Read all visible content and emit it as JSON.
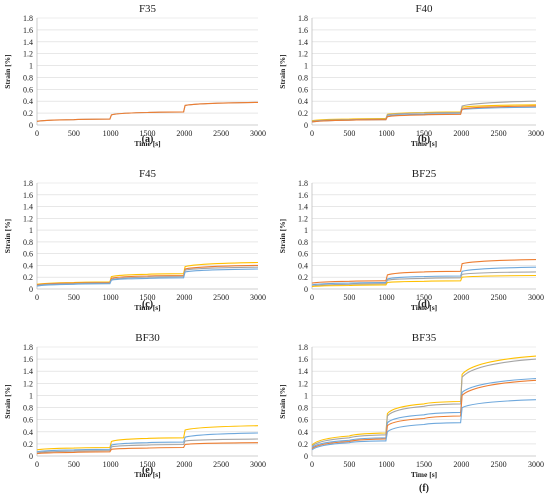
{
  "colors": {
    "blue": "#6fa8dc",
    "orange": "#ed7d31",
    "gray": "#a5a5a5",
    "yellow": "#ffc000"
  },
  "chart_data": [
    {
      "type": "line",
      "title": "F35",
      "label": "(a)",
      "xlabel": "Time [s]",
      "ylabel": "Strain [%]",
      "xlim": [
        0,
        3000
      ],
      "ylim": [
        0,
        1.8
      ],
      "xticks": [
        "0",
        "500",
        "1000",
        "1500",
        "2000",
        "2500",
        "3000"
      ],
      "yticks": [
        "0",
        "0.2",
        "0.4",
        "0.6",
        "0.8",
        "1",
        "1.2",
        "1.4",
        "1.6",
        "1.8"
      ],
      "grid": true,
      "series": [
        {
          "color": "gray",
          "values": [
            0.06,
            0.09,
            0.1,
            0.17,
            0.21,
            0.22,
            0.33,
            0.38
          ]
        },
        {
          "color": "orange",
          "values": [
            0.06,
            0.09,
            0.1,
            0.17,
            0.21,
            0.22,
            0.33,
            0.38
          ]
        }
      ]
    },
    {
      "type": "line",
      "title": "F40",
      "label": "(b)",
      "xlabel": "Time [s]",
      "ylabel": "Strain [%]",
      "xlim": [
        0,
        3000
      ],
      "ylim": [
        0,
        1.8
      ],
      "xticks": [
        "0",
        "500",
        "1000",
        "1500",
        "2000",
        "2500",
        "3000"
      ],
      "yticks": [
        "0",
        "0.2",
        "0.4",
        "0.6",
        "0.8",
        "1",
        "1.2",
        "1.4",
        "1.6",
        "1.8"
      ],
      "grid": true,
      "series": [
        {
          "color": "yellow",
          "values": [
            0.07,
            0.1,
            0.11,
            0.18,
            0.21,
            0.22,
            0.3,
            0.34
          ]
        },
        {
          "color": "gray",
          "values": [
            0.06,
            0.09,
            0.1,
            0.17,
            0.2,
            0.21,
            0.32,
            0.4
          ]
        },
        {
          "color": "blue",
          "values": [
            0.05,
            0.08,
            0.09,
            0.15,
            0.18,
            0.19,
            0.26,
            0.3
          ]
        },
        {
          "color": "orange",
          "values": [
            0.05,
            0.08,
            0.09,
            0.14,
            0.17,
            0.18,
            0.27,
            0.32
          ]
        }
      ]
    },
    {
      "type": "line",
      "title": "F45",
      "label": "(c)",
      "xlabel": "Time [s]",
      "ylabel": "Strain [%]",
      "xlim": [
        0,
        3000
      ],
      "ylim": [
        0,
        1.8
      ],
      "xticks": [
        "0",
        "500",
        "1000",
        "1500",
        "2000",
        "2500",
        "3000"
      ],
      "yticks": [
        "0",
        "0.2",
        "0.4",
        "0.6",
        "0.8",
        "1",
        "1.2",
        "1.4",
        "1.6",
        "1.8"
      ],
      "grid": true,
      "series": [
        {
          "color": "yellow",
          "values": [
            0.08,
            0.11,
            0.12,
            0.21,
            0.25,
            0.26,
            0.38,
            0.45
          ]
        },
        {
          "color": "orange",
          "values": [
            0.07,
            0.1,
            0.11,
            0.18,
            0.22,
            0.23,
            0.34,
            0.4
          ]
        },
        {
          "color": "gray",
          "values": [
            0.06,
            0.09,
            0.1,
            0.16,
            0.2,
            0.21,
            0.32,
            0.37
          ]
        },
        {
          "color": "blue",
          "values": [
            0.05,
            0.08,
            0.09,
            0.15,
            0.18,
            0.19,
            0.29,
            0.34
          ]
        }
      ]
    },
    {
      "type": "line",
      "title": "BF25",
      "label": "(d)",
      "xlabel": "Time [s]",
      "ylabel": "Strain [%]",
      "xlim": [
        0,
        3000
      ],
      "ylim": [
        0,
        1.8
      ],
      "xticks": [
        "0",
        "500",
        "1000",
        "1500",
        "2000",
        "2500",
        "3000"
      ],
      "yticks": [
        "0",
        "0.2",
        "0.4",
        "0.6",
        "0.8",
        "1",
        "1.2",
        "1.4",
        "1.6",
        "1.8"
      ],
      "grid": true,
      "series": [
        {
          "color": "orange",
          "values": [
            0.1,
            0.13,
            0.14,
            0.24,
            0.29,
            0.3,
            0.43,
            0.5
          ]
        },
        {
          "color": "blue",
          "values": [
            0.07,
            0.1,
            0.11,
            0.17,
            0.21,
            0.22,
            0.3,
            0.37
          ]
        },
        {
          "color": "gray",
          "values": [
            0.05,
            0.08,
            0.09,
            0.15,
            0.18,
            0.19,
            0.25,
            0.29
          ]
        },
        {
          "color": "yellow",
          "values": [
            0.04,
            0.06,
            0.07,
            0.11,
            0.13,
            0.14,
            0.2,
            0.23
          ]
        }
      ]
    },
    {
      "type": "line",
      "title": "BF30",
      "label": "(e)",
      "xlabel": "Time [s]",
      "ylabel": "Strain [%]",
      "xlim": [
        0,
        3000
      ],
      "ylim": [
        0,
        1.8
      ],
      "xticks": [
        "0",
        "500",
        "1000",
        "1500",
        "2000",
        "2500",
        "3000"
      ],
      "yticks": [
        "0",
        "0.2",
        "0.4",
        "0.6",
        "0.8",
        "1",
        "1.2",
        "1.4",
        "1.6",
        "1.8"
      ],
      "grid": true,
      "series": [
        {
          "color": "yellow",
          "values": [
            0.1,
            0.13,
            0.14,
            0.24,
            0.29,
            0.3,
            0.43,
            0.5
          ]
        },
        {
          "color": "blue",
          "values": [
            0.07,
            0.1,
            0.11,
            0.18,
            0.22,
            0.23,
            0.31,
            0.38
          ]
        },
        {
          "color": "gray",
          "values": [
            0.05,
            0.08,
            0.09,
            0.15,
            0.18,
            0.19,
            0.25,
            0.28
          ]
        },
        {
          "color": "orange",
          "values": [
            0.04,
            0.06,
            0.07,
            0.11,
            0.13,
            0.14,
            0.19,
            0.22
          ]
        }
      ]
    },
    {
      "type": "line",
      "title": "BF35",
      "label": "(f)",
      "xlabel": "Time [s]",
      "ylabel": "Strain [%]",
      "xlim": [
        0,
        3000
      ],
      "ylim": [
        0,
        1.8
      ],
      "xticks": [
        "0",
        "500",
        "1000",
        "1500",
        "2000",
        "2500",
        "3000"
      ],
      "yticks": [
        "0",
        "0.2",
        "0.4",
        "0.6",
        "0.8",
        "1",
        "1.2",
        "1.4",
        "1.6",
        "1.8"
      ],
      "grid": true,
      "series": [
        {
          "color": "yellow",
          "values": [
            0.18,
            0.33,
            0.38,
            0.7,
            0.86,
            0.9,
            1.35,
            1.65
          ]
        },
        {
          "color": "gray",
          "values": [
            0.16,
            0.3,
            0.35,
            0.66,
            0.82,
            0.86,
            1.3,
            1.6
          ]
        },
        {
          "color": "blue",
          "values": [
            0.14,
            0.26,
            0.3,
            0.55,
            0.68,
            0.72,
            1.05,
            1.28
          ]
        },
        {
          "color": "orange",
          "values": [
            0.12,
            0.24,
            0.28,
            0.5,
            0.62,
            0.66,
            1.0,
            1.25
          ]
        },
        {
          "color": "blue",
          "values": [
            0.1,
            0.22,
            0.25,
            0.4,
            0.52,
            0.55,
            0.8,
            0.93
          ]
        }
      ]
    }
  ]
}
